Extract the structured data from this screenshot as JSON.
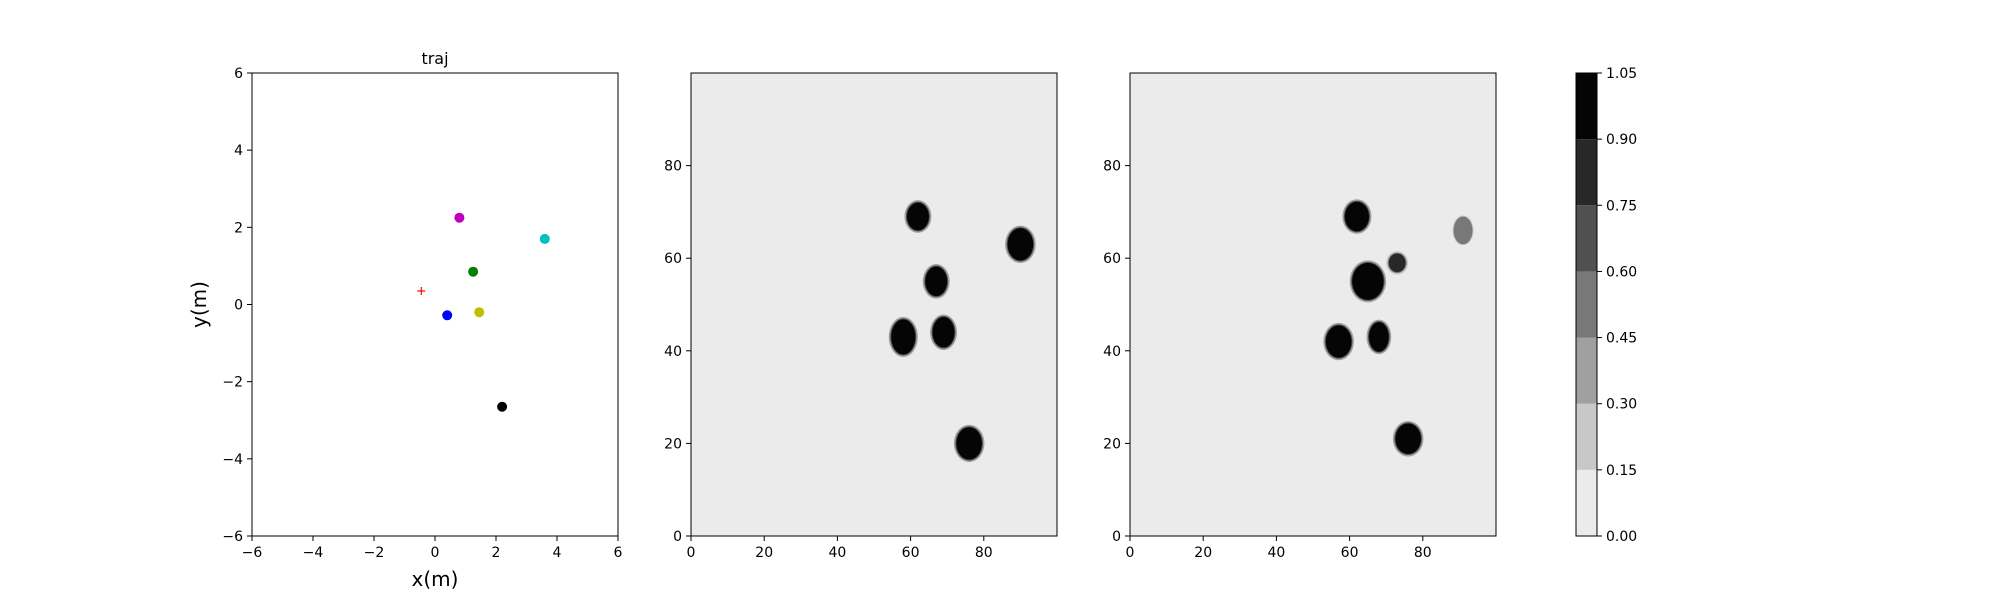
{
  "chart_data": [
    {
      "type": "scatter",
      "title": "traj",
      "xlabel": "x(m)",
      "ylabel": "y(m)",
      "xlim": [
        -6,
        6
      ],
      "ylim": [
        -6,
        6
      ],
      "xticks": [
        -6,
        -4,
        -2,
        0,
        2,
        4,
        6
      ],
      "yticks": [
        -6,
        -4,
        -2,
        0,
        2,
        4,
        6
      ],
      "grid": false,
      "points": [
        {
          "x": 0.8,
          "y": 2.25,
          "color": "#bf00bf",
          "marker": "circle"
        },
        {
          "x": 3.6,
          "y": 1.7,
          "color": "#00bfbf",
          "marker": "circle"
        },
        {
          "x": 1.25,
          "y": 0.85,
          "color": "#008000",
          "marker": "circle"
        },
        {
          "x": 0.4,
          "y": -0.28,
          "color": "#0000ff",
          "marker": "circle"
        },
        {
          "x": 1.45,
          "y": -0.2,
          "color": "#bfbf00",
          "marker": "circle"
        },
        {
          "x": 2.2,
          "y": -2.65,
          "color": "#000000",
          "marker": "circle"
        },
        {
          "x": -0.45,
          "y": 0.35,
          "color": "#ff0000",
          "marker": "plus"
        }
      ]
    },
    {
      "type": "heatmap",
      "xlim": [
        0,
        100
      ],
      "ylim": [
        0,
        100
      ],
      "xticks": [
        0,
        20,
        40,
        60,
        80
      ],
      "yticks": [
        0,
        20,
        40,
        60,
        80
      ],
      "background_value": 0.0,
      "blobs": [
        {
          "x": 62,
          "y": 69,
          "rx": 3,
          "ry": 3,
          "value": 1.0
        },
        {
          "x": 90,
          "y": 63,
          "rx": 3.5,
          "ry": 3.5,
          "value": 1.0
        },
        {
          "x": 67,
          "y": 55,
          "rx": 3,
          "ry": 3.2,
          "value": 1.0
        },
        {
          "x": 58,
          "y": 43,
          "rx": 3.3,
          "ry": 3.8,
          "value": 1.0
        },
        {
          "x": 69,
          "y": 44,
          "rx": 3,
          "ry": 3.3,
          "value": 1.0
        },
        {
          "x": 76,
          "y": 20,
          "rx": 3.5,
          "ry": 3.5,
          "value": 1.0
        }
      ]
    },
    {
      "type": "heatmap",
      "xlim": [
        0,
        100
      ],
      "ylim": [
        0,
        100
      ],
      "xticks": [
        0,
        20,
        40,
        60,
        80
      ],
      "yticks": [
        0,
        20,
        40,
        60,
        80
      ],
      "background_value": 0.0,
      "blobs": [
        {
          "x": 62,
          "y": 69,
          "rx": 3.3,
          "ry": 3.2,
          "value": 1.0
        },
        {
          "x": 91,
          "y": 66,
          "rx": 2.6,
          "ry": 3,
          "value": 0.55
        },
        {
          "x": 73,
          "y": 59,
          "rx": 2.3,
          "ry": 2,
          "value": 0.85
        },
        {
          "x": 65,
          "y": 55,
          "rx": 4.3,
          "ry": 4,
          "value": 1.0
        },
        {
          "x": 57,
          "y": 42,
          "rx": 3.5,
          "ry": 3.5,
          "value": 1.0
        },
        {
          "x": 68,
          "y": 43,
          "rx": 2.7,
          "ry": 3.2,
          "value": 1.0
        },
        {
          "x": 76,
          "y": 21,
          "rx": 3.5,
          "ry": 3.3,
          "value": 1.0
        }
      ]
    },
    {
      "type": "colorbar",
      "levels": [
        0.0,
        0.15,
        0.3,
        0.45,
        0.6,
        0.75,
        0.9,
        1.05
      ],
      "tick_labels": [
        "0.00",
        "0.15",
        "0.30",
        "0.45",
        "0.60",
        "0.75",
        "0.90",
        "1.05"
      ],
      "colors": [
        "#ebebeb",
        "#c8c8c8",
        "#a0a0a0",
        "#787878",
        "#505050",
        "#282828",
        "#050505"
      ]
    }
  ]
}
